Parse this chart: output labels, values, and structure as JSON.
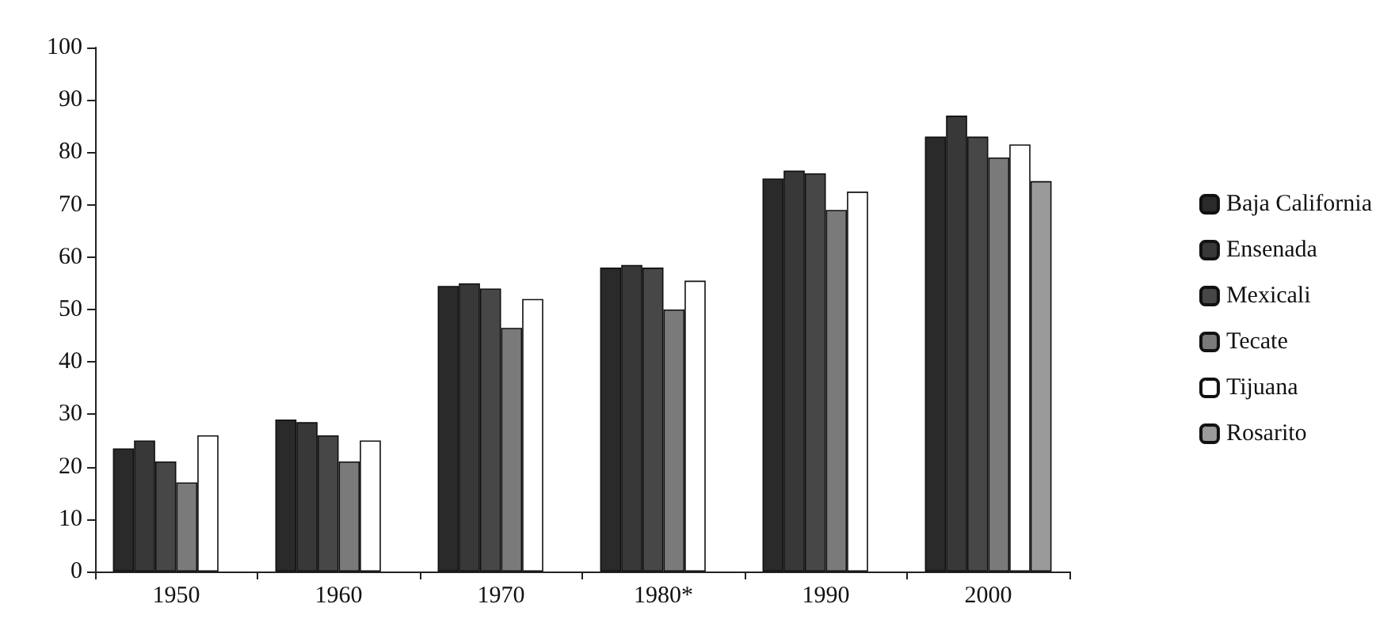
{
  "chart_data": {
    "type": "bar",
    "categories": [
      "1950",
      "1960",
      "1970",
      "1980*",
      "1990",
      "2000"
    ],
    "series": [
      {
        "name": "Baja California",
        "color": "#2a2a2a",
        "values": [
          23.5,
          29,
          54.5,
          58,
          75,
          83
        ]
      },
      {
        "name": "Ensenada",
        "color": "#383838",
        "values": [
          25,
          28.5,
          55,
          58.5,
          76.5,
          87
        ]
      },
      {
        "name": "Mexicali",
        "color": "#474747",
        "values": [
          21,
          26,
          54,
          58,
          76,
          83
        ]
      },
      {
        "name": "Tecate",
        "color": "#7a7a7a",
        "values": [
          17,
          21,
          46.5,
          50,
          69,
          79
        ]
      },
      {
        "name": "Tijuana",
        "color": "#ffffff",
        "values": [
          26,
          25,
          52,
          55.5,
          72.5,
          81.5
        ]
      },
      {
        "name": "Rosarito",
        "color": "#9a9a9a",
        "values": [
          null,
          null,
          null,
          null,
          null,
          74.5
        ]
      }
    ],
    "ylim": [
      0,
      100
    ],
    "yticks": [
      0,
      10,
      20,
      30,
      40,
      50,
      60,
      70,
      80,
      90,
      100
    ],
    "grid": false,
    "legend": "right"
  }
}
